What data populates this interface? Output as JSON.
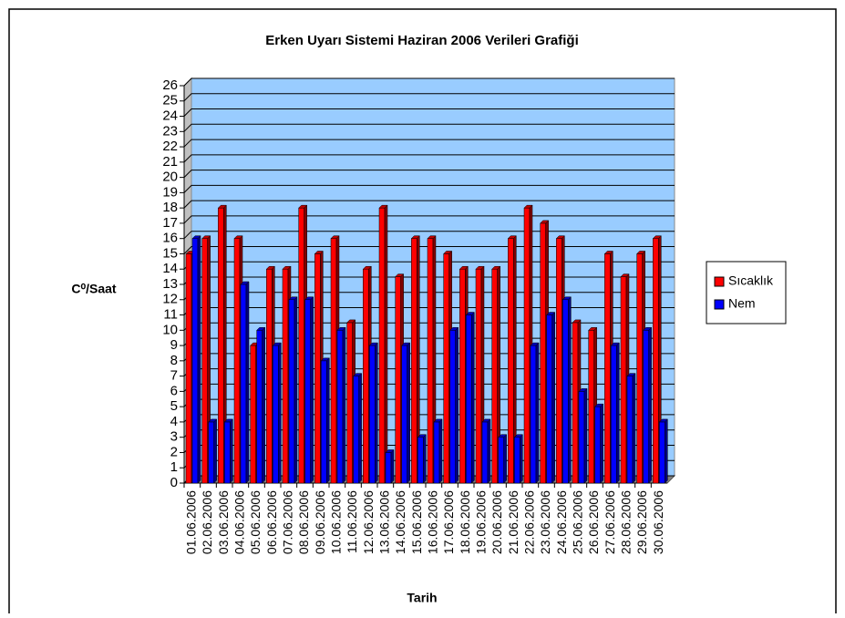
{
  "chart_data": {
    "type": "bar",
    "title": "Erken Uyarı Sistemi Haziran 2006 Verileri Grafiği",
    "xlabel": "Tarih",
    "ylabel": "C⁰/Saat",
    "categories": [
      "01.06.2006",
      "02.06.2006",
      "03.06.2006",
      "04.06.2006",
      "05.06.2006",
      "06.06.2006",
      "07.06.2006",
      "08.06.2006",
      "09.06.2006",
      "10.06.2006",
      "11.06.2006",
      "12.06.2006",
      "13.06.2006",
      "14.06.2006",
      "15.06.2006",
      "16.06.2006",
      "17.06.2006",
      "18.06.2006",
      "19.06.2006",
      "20.06.2006",
      "21.06.2006",
      "22.06.2006",
      "23.06.2006",
      "24.06.2006",
      "25.06.2006",
      "26.06.2006",
      "27.06.2006",
      "28.06.2006",
      "29.06.2006",
      "30.06.2006"
    ],
    "series": [
      {
        "name": "Sıcaklık",
        "color": "#ff0000",
        "values": [
          15,
          16,
          18,
          16,
          9,
          14,
          14,
          18,
          15,
          16,
          10.5,
          14,
          18,
          13.5,
          16,
          16,
          15,
          14,
          14,
          14,
          16,
          18,
          17,
          16,
          10.5,
          10,
          15,
          13.5,
          15,
          16
        ]
      },
      {
        "name": "Nem",
        "color": "#0000ff",
        "values": [
          16,
          4,
          4,
          13,
          10,
          9,
          12,
          12,
          8,
          10,
          7,
          9,
          2,
          9,
          3,
          4,
          10,
          11,
          4,
          3,
          3,
          9,
          11,
          12,
          6,
          5,
          9,
          7,
          10,
          4
        ]
      }
    ],
    "ylim": [
      0,
      26
    ],
    "yticks": [
      0,
      1,
      2,
      3,
      4,
      5,
      6,
      7,
      8,
      9,
      10,
      11,
      12,
      13,
      14,
      15,
      16,
      17,
      18,
      19,
      20,
      21,
      22,
      23,
      24,
      25,
      26
    ],
    "grid": true,
    "legend": "right",
    "wall_color": "#99ccff"
  }
}
